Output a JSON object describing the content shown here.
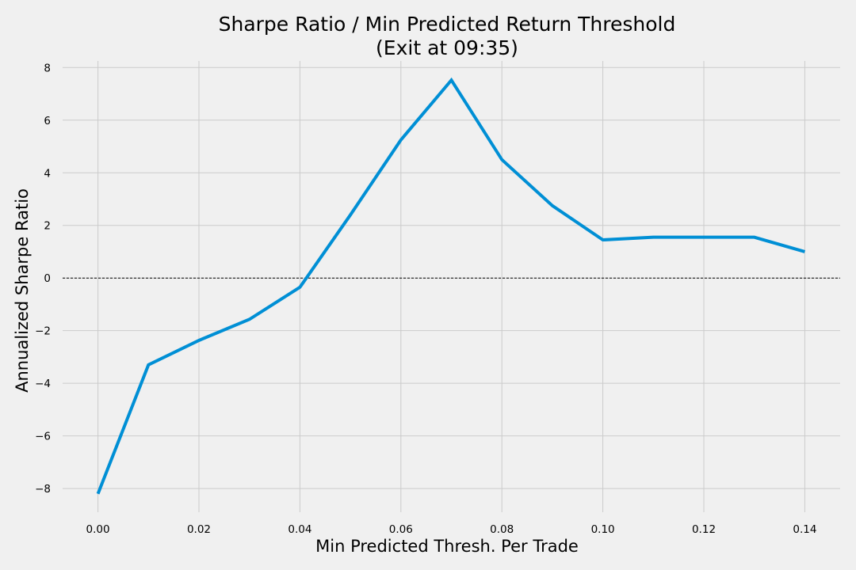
{
  "colors": {
    "background": "#f0f0f0",
    "grid": "#cbcbcb",
    "series": "#008fd5",
    "zero_line": "#000000"
  },
  "chart_data": {
    "type": "line",
    "title": "Sharpe Ratio / Min Predicted Return Threshold",
    "subtitle": "(Exit at 09:35)",
    "xlabel": "Min Predicted Thresh. Per Trade",
    "ylabel": "Annualized Sharpe Ratio",
    "xlim": [
      -0.007,
      0.147
    ],
    "ylim": [
      -8.9,
      8.25
    ],
    "xticks": [
      0.0,
      0.02,
      0.04,
      0.06,
      0.08,
      0.1,
      0.12,
      0.14
    ],
    "xtick_labels": [
      "0.00",
      "0.02",
      "0.04",
      "0.06",
      "0.08",
      "0.10",
      "0.12",
      "0.14"
    ],
    "yticks": [
      -8,
      -6,
      -4,
      -2,
      0,
      2,
      4,
      6,
      8
    ],
    "ytick_labels": [
      "−8",
      "−6",
      "−4",
      "−2",
      "0",
      "2",
      "4",
      "6",
      "8"
    ],
    "grid": true,
    "reference_line": {
      "y": 0,
      "style": "dashed"
    },
    "series": [
      {
        "x": [
          0.0,
          0.01,
          0.02,
          0.03,
          0.04,
          0.05,
          0.06,
          0.07,
          0.08,
          0.09,
          0.1,
          0.11,
          0.12,
          0.13,
          0.14
        ],
        "values": [
          -8.2,
          -3.3,
          -2.37,
          -1.57,
          -0.35,
          2.4,
          5.25,
          7.52,
          4.5,
          2.75,
          1.45,
          1.55,
          1.55,
          1.55,
          1.0
        ]
      }
    ]
  }
}
